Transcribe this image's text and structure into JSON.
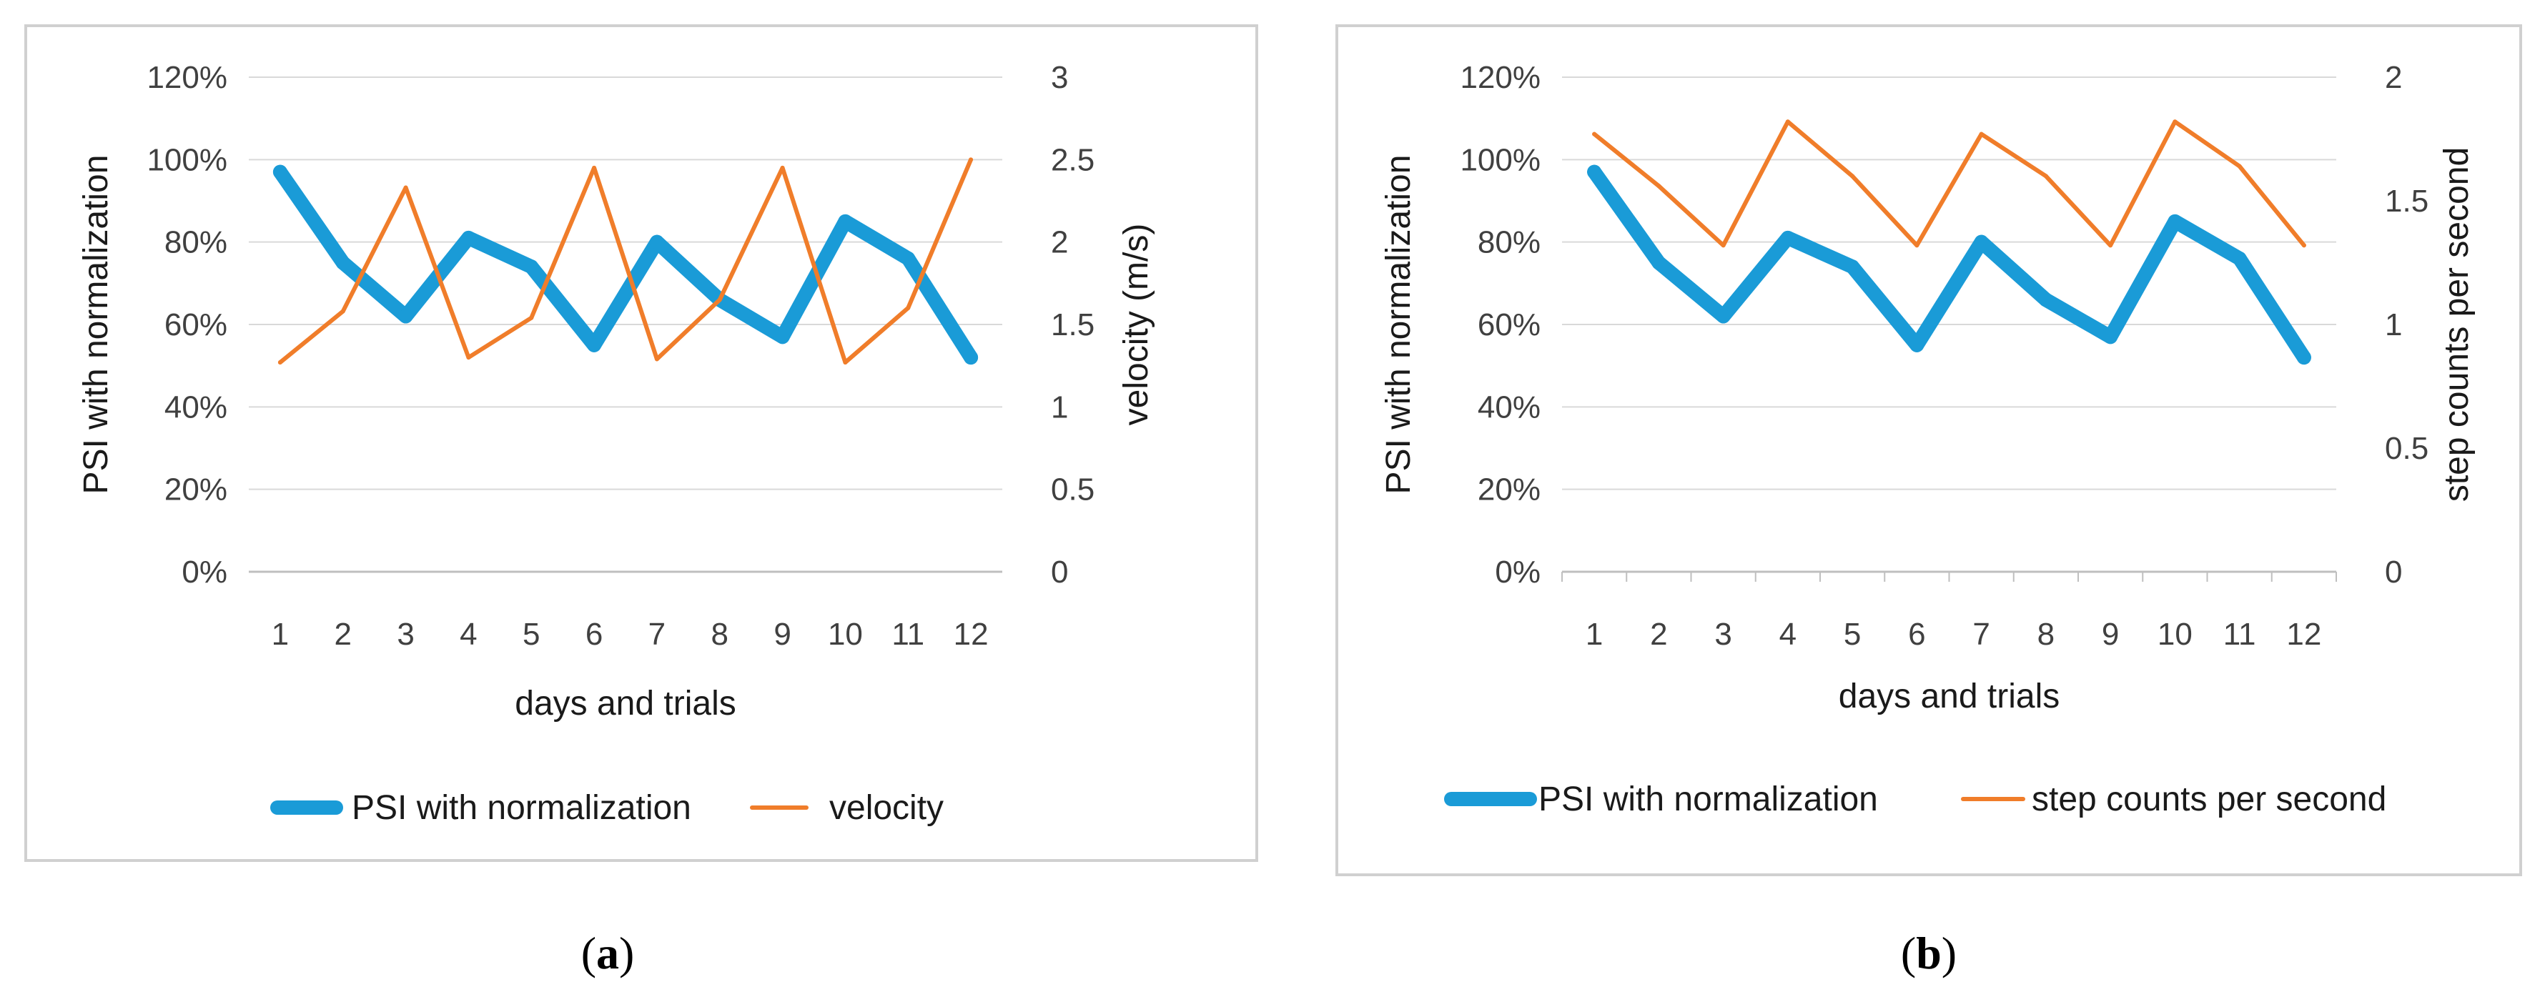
{
  "colors": {
    "psi": "#1a9bd7",
    "secondary": "#f07d2a",
    "grid": "#d9d9d9",
    "frame": "#d0d0d0"
  },
  "chart_data": [
    {
      "type": "line",
      "panel": "a",
      "caption": {
        "open": "(",
        "letter": "a",
        "close": ")"
      },
      "categories": [
        "1",
        "2",
        "3",
        "4",
        "5",
        "6",
        "7",
        "8",
        "9",
        "10",
        "11",
        "12"
      ],
      "xlabel": "days and trials",
      "ylabel": "PSI with normalization",
      "y2label": "velocity (m/s)",
      "ylim": [
        0,
        1.2
      ],
      "y2lim": [
        0,
        3
      ],
      "yticks": [
        "0%",
        "20%",
        "40%",
        "60%",
        "80%",
        "100%",
        "120%"
      ],
      "y2ticks": [
        "0",
        "0.5",
        "1",
        "1.5",
        "2",
        "2.5",
        "3"
      ],
      "grid": true,
      "legend": "bottom",
      "series": [
        {
          "name": "PSI with normalization",
          "axis": "left",
          "color": "#1a9bd7",
          "values": [
            0.97,
            0.75,
            0.62,
            0.81,
            0.74,
            0.55,
            0.8,
            0.66,
            0.57,
            0.85,
            0.76,
            0.52
          ]
        },
        {
          "name": "velocity",
          "axis": "right",
          "color": "#f07d2a",
          "values": [
            1.27,
            1.58,
            2.33,
            1.3,
            1.54,
            2.45,
            1.29,
            1.65,
            2.45,
            1.27,
            1.6,
            2.5
          ]
        }
      ]
    },
    {
      "type": "line",
      "panel": "b",
      "caption": {
        "open": "(",
        "letter": "b",
        "close": ")"
      },
      "categories": [
        "1",
        "2",
        "3",
        "4",
        "5",
        "6",
        "7",
        "8",
        "9",
        "10",
        "11",
        "12"
      ],
      "xlabel": "days and trials",
      "ylabel": "PSI with normalization",
      "y2label": "step counts per second",
      "ylim": [
        0,
        1.2
      ],
      "y2lim": [
        0,
        2
      ],
      "yticks": [
        "0%",
        "20%",
        "40%",
        "60%",
        "80%",
        "100%",
        "120%"
      ],
      "y2ticks": [
        "0",
        "0.5",
        "1",
        "1.5",
        "2"
      ],
      "grid": true,
      "legend": "bottom",
      "series": [
        {
          "name": "PSI with normalization",
          "axis": "left",
          "color": "#1a9bd7",
          "values": [
            0.97,
            0.75,
            0.62,
            0.81,
            0.74,
            0.55,
            0.8,
            0.66,
            0.57,
            0.85,
            0.76,
            0.52
          ]
        },
        {
          "name": "step counts per second",
          "axis": "right",
          "color": "#f07d2a",
          "values": [
            1.77,
            1.56,
            1.32,
            1.82,
            1.6,
            1.32,
            1.77,
            1.6,
            1.32,
            1.82,
            1.64,
            1.32
          ]
        }
      ]
    }
  ]
}
